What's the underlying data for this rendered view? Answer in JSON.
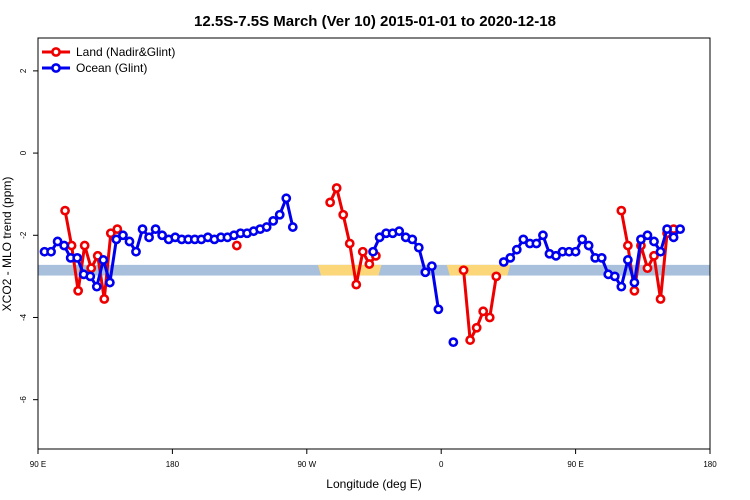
{
  "chart_data": {
    "type": "line",
    "title": "12.5S-7.5S March (Ver 10)   2015-01-01 to 2020-12-18",
    "xlabel": "Longitude (deg E)",
    "ylabel": "XCO2 - MLO trend (ppm)",
    "xlim": [
      90,
      450
    ],
    "ylim": [
      -7.2,
      2.8
    ],
    "x_ticks": [
      {
        "value": 90,
        "label": "90 E"
      },
      {
        "value": 162,
        "label": "180"
      },
      {
        "value": 234,
        "label": "90 W"
      },
      {
        "value": 306,
        "label": "0"
      },
      {
        "value": 378,
        "label": "90 E"
      },
      {
        "value": 450,
        "label": "180"
      }
    ],
    "y_ticks": [
      {
        "value": -6,
        "label": "-6"
      },
      {
        "value": -4,
        "label": "-4"
      },
      {
        "value": -2,
        "label": "-2"
      },
      {
        "value": 0,
        "label": "0"
      },
      {
        "value": 2,
        "label": "2"
      }
    ],
    "grid": false,
    "legend_position": "top-left",
    "surface_band": {
      "y_range": [
        -2.98,
        -2.72
      ],
      "base_color": "#a8c0dc",
      "land_color": "#fcd77a",
      "land_x": [
        [
          240,
          274
        ],
        [
          309,
          343
        ]
      ]
    },
    "series": [
      {
        "name": "Land (Nadir&Glint)",
        "color": "#ee0000",
        "segments": [
          [
            [
              104.5,
              -1.4
            ],
            [
              108,
              -2.25
            ],
            [
              111.5,
              -3.35
            ],
            [
              115,
              -2.25
            ],
            [
              118.5,
              -2.8
            ],
            [
              122,
              -2.5
            ],
            [
              125.5,
              -3.55
            ],
            [
              129,
              -1.95
            ],
            [
              132.5,
              -1.85
            ]
          ],
          [
            [
              196.5,
              -2.25
            ]
          ],
          [
            [
              246.5,
              -1.2
            ],
            [
              250,
              -0.85
            ],
            [
              253.5,
              -1.5
            ],
            [
              257,
              -2.2
            ],
            [
              260.5,
              -3.2
            ],
            [
              264,
              -2.4
            ],
            [
              267.5,
              -2.7
            ],
            [
              271,
              -2.5
            ]
          ],
          [
            [
              318,
              -2.85
            ],
            [
              321.5,
              -4.55
            ],
            [
              325,
              -4.25
            ],
            [
              328.5,
              -3.85
            ],
            [
              332,
              -4.0
            ],
            [
              335.5,
              -3.0
            ]
          ],
          [
            [
              402.5,
              -1.4
            ],
            [
              406,
              -2.25
            ],
            [
              409.5,
              -3.35
            ],
            [
              413,
              -2.25
            ],
            [
              416.5,
              -2.8
            ],
            [
              420,
              -2.5
            ],
            [
              423.5,
              -3.55
            ],
            [
              427,
              -1.95
            ],
            [
              430.5,
              -1.85
            ]
          ]
        ]
      },
      {
        "name": "Ocean (Glint)",
        "color": "#0000ee",
        "segments": [
          [
            [
              93.5,
              -2.4
            ],
            [
              97,
              -2.4
            ],
            [
              100.5,
              -2.15
            ],
            [
              104,
              -2.25
            ],
            [
              107.5,
              -2.55
            ],
            [
              111,
              -2.55
            ],
            [
              114.5,
              -2.95
            ],
            [
              118,
              -3.0
            ],
            [
              121.5,
              -3.25
            ],
            [
              125,
              -2.6
            ],
            [
              128.5,
              -3.15
            ],
            [
              132,
              -2.1
            ],
            [
              135.5,
              -2.0
            ],
            [
              139,
              -2.15
            ],
            [
              142.5,
              -2.4
            ],
            [
              146,
              -1.85
            ],
            [
              149.5,
              -2.05
            ],
            [
              153,
              -1.85
            ],
            [
              156.5,
              -2.0
            ],
            [
              160,
              -2.1
            ],
            [
              163.5,
              -2.05
            ],
            [
              167,
              -2.1
            ],
            [
              170.5,
              -2.1
            ],
            [
              174,
              -2.1
            ],
            [
              177.5,
              -2.1
            ],
            [
              181,
              -2.05
            ],
            [
              184.5,
              -2.1
            ],
            [
              188,
              -2.05
            ],
            [
              191.5,
              -2.05
            ],
            [
              195,
              -2.0
            ],
            [
              198.5,
              -1.95
            ],
            [
              202,
              -1.95
            ],
            [
              205.5,
              -1.9
            ],
            [
              209,
              -1.85
            ],
            [
              212.5,
              -1.8
            ],
            [
              216,
              -1.65
            ],
            [
              219.5,
              -1.5
            ],
            [
              223,
              -1.1
            ],
            [
              226.5,
              -1.8
            ]
          ],
          [
            [
              269.5,
              -2.4
            ],
            [
              273,
              -2.05
            ],
            [
              276.5,
              -1.95
            ],
            [
              280,
              -1.95
            ],
            [
              283.5,
              -1.9
            ],
            [
              287,
              -2.05
            ],
            [
              290.5,
              -2.1
            ],
            [
              294,
              -2.3
            ],
            [
              297.5,
              -2.9
            ],
            [
              301,
              -2.75
            ],
            [
              304.5,
              -3.8
            ]
          ],
          [
            [
              312.5,
              -4.6
            ]
          ],
          [
            [
              339.5,
              -2.65
            ],
            [
              343,
              -2.55
            ],
            [
              346.5,
              -2.35
            ],
            [
              350,
              -2.1
            ],
            [
              353.5,
              -2.2
            ],
            [
              357,
              -2.2
            ],
            [
              360.5,
              -2.0
            ],
            [
              364,
              -2.45
            ],
            [
              367.5,
              -2.5
            ],
            [
              371,
              -2.4
            ],
            [
              374.5,
              -2.4
            ],
            [
              378,
              -2.4
            ],
            [
              381.5,
              -2.1
            ],
            [
              385,
              -2.25
            ],
            [
              388.5,
              -2.55
            ],
            [
              392,
              -2.55
            ],
            [
              395.5,
              -2.95
            ],
            [
              399,
              -3.0
            ],
            [
              402.5,
              -3.25
            ],
            [
              406,
              -2.6
            ],
            [
              409.5,
              -3.15
            ],
            [
              413,
              -2.1
            ],
            [
              416.5,
              -2.0
            ],
            [
              420,
              -2.15
            ],
            [
              423.5,
              -2.4
            ],
            [
              427,
              -1.85
            ],
            [
              430.5,
              -2.05
            ],
            [
              434,
              -1.85
            ]
          ]
        ]
      }
    ]
  }
}
